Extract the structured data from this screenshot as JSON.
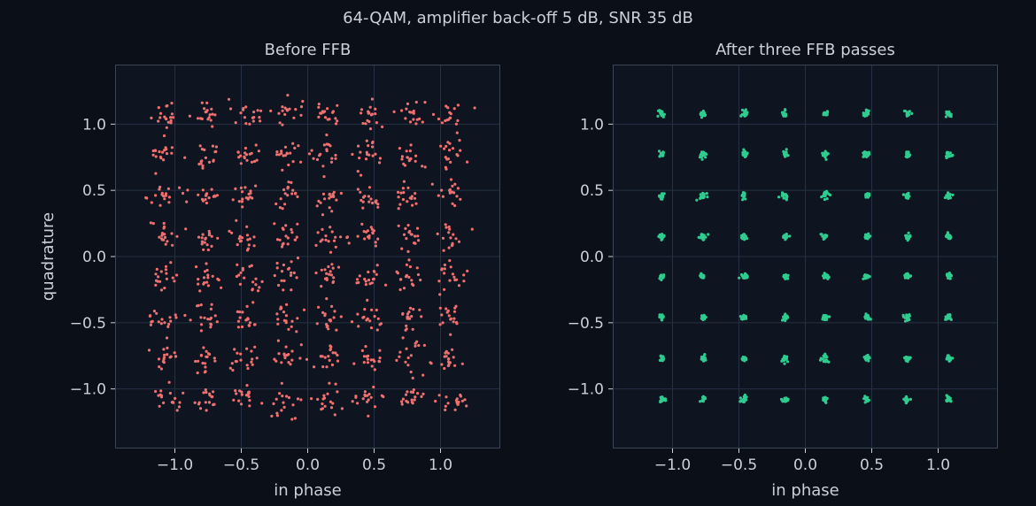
{
  "figure": {
    "suptitle": "64-QAM, amplifier back-off 5 dB, SNR 35 dB"
  },
  "colors": {
    "background": "#0b0f17",
    "plot_bg": "#0e1420",
    "grid": "#253042",
    "text": "#c9d1d9",
    "before_points": "#f07070",
    "after_points": "#2ecc8f"
  },
  "chart_data": [
    {
      "type": "scatter",
      "title": "Before FFB",
      "xlabel": "in phase",
      "ylabel": "quadrature",
      "xlim": [
        -1.45,
        1.45
      ],
      "ylim": [
        -1.45,
        1.45
      ],
      "xticks": [
        -1.0,
        -0.5,
        0.0,
        0.5,
        1.0
      ],
      "xtick_labels": [
        "−1.0",
        "−0.5",
        "0.0",
        "0.5",
        "1.0"
      ],
      "yticks": [
        -1.0,
        -0.5,
        0.0,
        0.5,
        1.0
      ],
      "ytick_labels": [
        "−1.0",
        "−0.5",
        "0.0",
        "0.5",
        "1.0"
      ],
      "grid": true,
      "constellation_i": [
        -1.08,
        -0.77,
        -0.46,
        -0.15,
        0.15,
        0.46,
        0.77,
        1.08
      ],
      "constellation_q": [
        1.08,
        0.77,
        0.46,
        0.15,
        -0.15,
        -0.46,
        -0.77,
        -1.08
      ],
      "points_per_symbol": 18,
      "spread_std": 0.055,
      "color": "#f07070"
    },
    {
      "type": "scatter",
      "title": "After three FFB passes",
      "xlabel": "in phase",
      "ylabel": "",
      "xlim": [
        -1.45,
        1.45
      ],
      "ylim": [
        -1.45,
        1.45
      ],
      "xticks": [
        -1.0,
        -0.5,
        0.0,
        0.5,
        1.0
      ],
      "xtick_labels": [
        "−1.0",
        "−0.5",
        "0.0",
        "0.5",
        "1.0"
      ],
      "yticks": [
        -1.0,
        -0.5,
        0.0,
        0.5,
        1.0
      ],
      "ytick_labels": [
        "−1.0",
        "−0.5",
        "0.0",
        "0.5",
        "1.0"
      ],
      "grid": true,
      "constellation_i": [
        -1.08,
        -0.77,
        -0.46,
        -0.15,
        0.15,
        0.46,
        0.77,
        1.08
      ],
      "constellation_q": [
        1.08,
        0.77,
        0.46,
        0.15,
        -0.15,
        -0.46,
        -0.77,
        -1.08
      ],
      "points_per_symbol": 18,
      "spread_std": 0.012,
      "color": "#2ecc8f"
    }
  ]
}
